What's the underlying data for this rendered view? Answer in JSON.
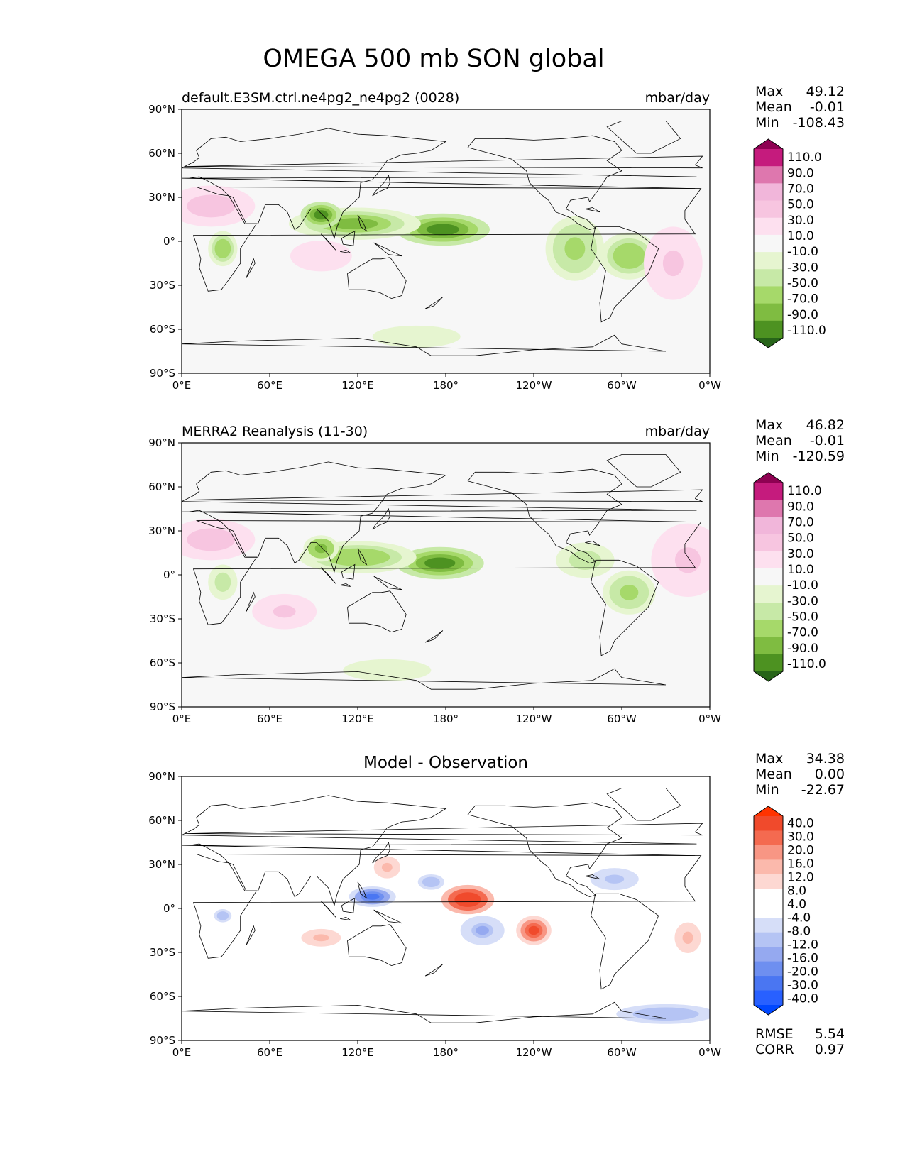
{
  "title": "OMEGA 500 mb SON global",
  "colors": {
    "diverging": [
      "#276419",
      "#4d9221",
      "#7fbc41",
      "#a6d96a",
      "#c7e9a7",
      "#e6f5d0",
      "#f7f7f7",
      "#fde0ef",
      "#f7c5e0",
      "#f1b6da",
      "#de77ae",
      "#c51b7d",
      "#8e0152"
    ],
    "difference": [
      "#0047ff",
      "#2860ff",
      "#4a76f2",
      "#6e8ff0",
      "#95a9f0",
      "#b5c4f4",
      "#d6def8",
      "#ffffff",
      "#ffffff",
      "#fdd8d2",
      "#fbb9ac",
      "#f89684",
      "#f46a50",
      "#f04a2c",
      "#ff3300"
    ],
    "ocean": "#f7f7f7",
    "coast": "#000000"
  },
  "chart_data": [
    {
      "type": "heatmap",
      "panel": "test",
      "subtitle_left": "default.E3SM.ctrl.ne4pg2_ne4pg2 (0028)",
      "subtitle_right": "mbar/day",
      "stats": [
        {
          "label": "Max",
          "value": "49.12"
        },
        {
          "label": "Mean",
          "value": "-0.01"
        },
        {
          "label": "Min",
          "value": "-108.43"
        }
      ],
      "xlim": [
        0,
        360
      ],
      "ylim": [
        -90,
        90
      ],
      "xticks": [
        "0°E",
        "60°E",
        "120°E",
        "180°",
        "120°W",
        "60°W",
        "0°W"
      ],
      "yticks": [
        "90°N",
        "60°N",
        "30°N",
        "0°",
        "30°S",
        "60°S",
        "90°S"
      ],
      "colorbar_levels": [
        "110.0",
        "90.0",
        "70.0",
        "50.0",
        "30.0",
        "10.0",
        "-10.0",
        "-30.0",
        "-50.0",
        "-70.0",
        "-90.0",
        "-110.0"
      ],
      "colormap": "diverging",
      "features": [
        {
          "lon": 178,
          "lat": 8,
          "a": 32,
          "b": 11,
          "value": -100
        },
        {
          "lon": 118,
          "lat": 12,
          "a": 45,
          "b": 11,
          "value": -75
        },
        {
          "lon": 95,
          "lat": 18,
          "a": 14,
          "b": 9,
          "value": -95
        },
        {
          "lon": 268,
          "lat": -5,
          "a": 20,
          "b": 22,
          "value": -55
        },
        {
          "lon": 305,
          "lat": -10,
          "a": 20,
          "b": 16,
          "value": -70
        },
        {
          "lon": 28,
          "lat": -5,
          "a": 10,
          "b": 12,
          "value": -65
        },
        {
          "lon": 95,
          "lat": -10,
          "a": 28,
          "b": 14,
          "value": 28
        },
        {
          "lon": 20,
          "lat": 24,
          "a": 30,
          "b": 14,
          "value": 40
        },
        {
          "lon": 160,
          "lat": -65,
          "a": 40,
          "b": 10,
          "value": -25
        },
        {
          "lon": 335,
          "lat": -15,
          "a": 20,
          "b": 25,
          "value": 30
        }
      ]
    },
    {
      "type": "heatmap",
      "panel": "reference",
      "subtitle_left": "MERRA2 Reanalysis (11-30)",
      "subtitle_right": "mbar/day",
      "stats": [
        {
          "label": "Max",
          "value": "46.82"
        },
        {
          "label": "Mean",
          "value": "-0.01"
        },
        {
          "label": "Min",
          "value": "-120.59"
        }
      ],
      "xlim": [
        0,
        360
      ],
      "ylim": [
        -90,
        90
      ],
      "xticks": [
        "0°E",
        "60°E",
        "120°E",
        "180°",
        "120°W",
        "60°W",
        "0°W"
      ],
      "yticks": [
        "90°N",
        "60°N",
        "30°N",
        "0°",
        "30°S",
        "60°S",
        "90°S"
      ],
      "colorbar_levels": [
        "110.0",
        "90.0",
        "70.0",
        "50.0",
        "30.0",
        "10.0",
        "-10.0",
        "-30.0",
        "-50.0",
        "-70.0",
        "-90.0",
        "-110.0"
      ],
      "colormap": "diverging",
      "features": [
        {
          "lon": 176,
          "lat": 8,
          "a": 30,
          "b": 11,
          "value": -110
        },
        {
          "lon": 120,
          "lat": 12,
          "a": 40,
          "b": 11,
          "value": -70
        },
        {
          "lon": 95,
          "lat": 18,
          "a": 12,
          "b": 9,
          "value": -85
        },
        {
          "lon": 275,
          "lat": 10,
          "a": 20,
          "b": 12,
          "value": -40
        },
        {
          "lon": 305,
          "lat": -12,
          "a": 18,
          "b": 15,
          "value": -60
        },
        {
          "lon": 28,
          "lat": -5,
          "a": 10,
          "b": 12,
          "value": -50
        },
        {
          "lon": 70,
          "lat": -25,
          "a": 22,
          "b": 12,
          "value": 35
        },
        {
          "lon": 20,
          "lat": 24,
          "a": 30,
          "b": 14,
          "value": 40
        },
        {
          "lon": 140,
          "lat": -65,
          "a": 40,
          "b": 10,
          "value": -25
        },
        {
          "lon": 345,
          "lat": 10,
          "a": 25,
          "b": 25,
          "value": 30
        }
      ]
    },
    {
      "type": "heatmap",
      "panel": "difference",
      "subtitle_center": "Model - Observation",
      "stats": [
        {
          "label": "Max",
          "value": "34.38"
        },
        {
          "label": "Mean",
          "value": "0.00"
        },
        {
          "label": "Min",
          "value": "-22.67"
        }
      ],
      "bottom_stats": [
        {
          "label": "RMSE",
          "value": "5.54"
        },
        {
          "label": "CORR",
          "value": "0.97"
        }
      ],
      "xlim": [
        0,
        360
      ],
      "ylim": [
        -90,
        90
      ],
      "xticks": [
        "0°E",
        "60°E",
        "120°E",
        "180°",
        "120°W",
        "60°W",
        "0°W"
      ],
      "yticks": [
        "90°N",
        "60°N",
        "30°N",
        "0°",
        "30°S",
        "60°S",
        "90°S"
      ],
      "colorbar_levels": [
        "40.0",
        "30.0",
        "20.0",
        "16.0",
        "12.0",
        "8.0",
        "4.0",
        "-4.0",
        "-8.0",
        "-12.0",
        "-16.0",
        "-20.0",
        "-30.0",
        "-40.0"
      ],
      "colormap": "difference",
      "features": [
        {
          "lon": 195,
          "lat": 6,
          "a": 18,
          "b": 10,
          "value": 30
        },
        {
          "lon": 130,
          "lat": 8,
          "a": 16,
          "b": 7,
          "value": -22
        },
        {
          "lon": 240,
          "lat": -15,
          "a": 12,
          "b": 10,
          "value": 22
        },
        {
          "lon": 95,
          "lat": -20,
          "a": 18,
          "b": 8,
          "value": 10
        },
        {
          "lon": 205,
          "lat": -15,
          "a": 15,
          "b": 10,
          "value": -12
        },
        {
          "lon": 170,
          "lat": 18,
          "a": 12,
          "b": 7,
          "value": -10
        },
        {
          "lon": 295,
          "lat": 20,
          "a": 22,
          "b": 10,
          "value": -8
        },
        {
          "lon": 345,
          "lat": -20,
          "a": 12,
          "b": 14,
          "value": 10
        },
        {
          "lon": 330,
          "lat": -72,
          "a": 45,
          "b": 9,
          "value": -10
        },
        {
          "lon": 28,
          "lat": -5,
          "a": 8,
          "b": 6,
          "value": -10
        },
        {
          "lon": 140,
          "lat": 28,
          "a": 12,
          "b": 10,
          "value": 10
        }
      ]
    }
  ]
}
